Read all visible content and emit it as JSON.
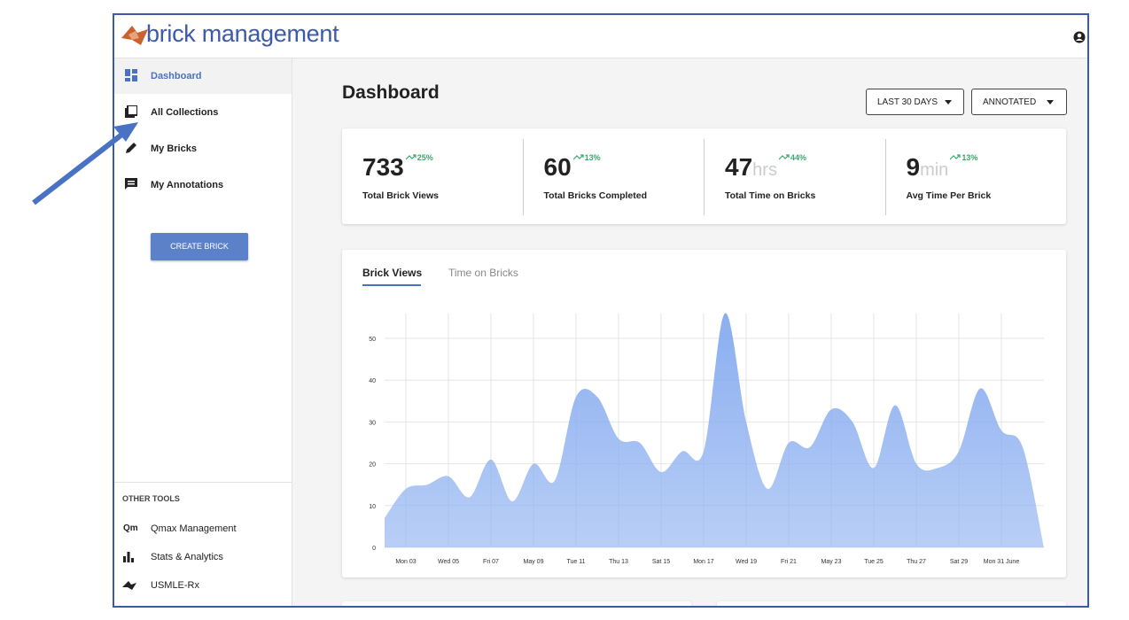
{
  "header": {
    "logo": "brick management"
  },
  "sidebar": {
    "nav": [
      "Dashboard",
      "All Collections",
      "My Bricks",
      "My Annotations"
    ],
    "button": "CREATE BRICK",
    "other_tools_title": "OTHER TOOLS",
    "tools": [
      "Qmax Management",
      "Stats & Analytics",
      "USMLE-Rx"
    ]
  },
  "main": {
    "title": "Dashboard",
    "filters": [
      "LAST 30 DAYS",
      "ANNOTATED"
    ],
    "stats": [
      {
        "value": 733,
        "change": "25%",
        "label": "Total Brick Views"
      },
      {
        "value": 60,
        "change": "13%",
        "label": "Total Bricks Completed"
      },
      {
        "value": 47,
        "unit": "hrs",
        "change": "44%",
        "label": "Total Time on Bricks"
      },
      {
        "value": 9,
        "unit": "min",
        "change": "13%",
        "label": "Avg Time Per Brick"
      }
    ],
    "tabs": [
      "Brick Views",
      "Time on Bricks"
    ]
  },
  "chart": {
    "type": "area",
    "categories": [
      null,
      "Mon 03",
      null,
      "Wed 05",
      null,
      "Fri 07",
      null,
      "May 09",
      null,
      "Tue 11",
      null,
      "Thu 13",
      null,
      "Sat 15",
      null,
      "Mon 17",
      null,
      "Wed 19",
      null,
      "Fri 21",
      null,
      "May 23",
      null,
      "Tue 25",
      null,
      "Thu 27",
      null,
      "Sat 29",
      null,
      "Mon 31 June",
      null,
      null
    ],
    "values": [
      7,
      14,
      15,
      17,
      12,
      21,
      11,
      20,
      16,
      36,
      36,
      26,
      25,
      18,
      23,
      23,
      56,
      30,
      14,
      25,
      24,
      33,
      30,
      19,
      34,
      20,
      19,
      23,
      38,
      28,
      24,
      0
    ],
    "color": "#8aaef0",
    "ylim": [
      0,
      56
    ],
    "yticks": [
      0,
      10,
      20,
      30,
      40,
      50
    ],
    "grid": true
  }
}
